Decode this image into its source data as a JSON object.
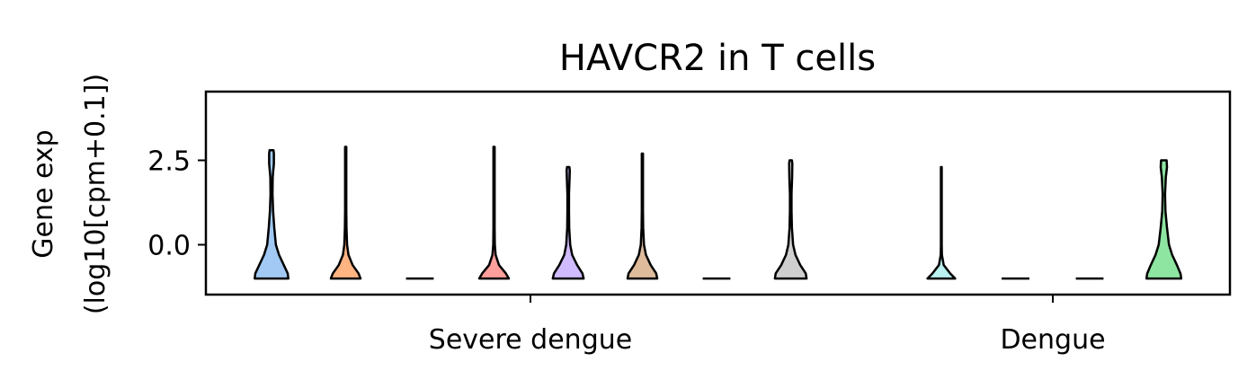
{
  "chart_data": {
    "type": "violin",
    "title": "HAVCR2 in T cells",
    "ylabel_lines": [
      "Gene exp",
      "(log10[cpm+0.1])"
    ],
    "xlabel": "",
    "ylim": [
      -1.5,
      4.4
    ],
    "yticks": [
      0.0,
      2.5
    ],
    "ytick_labels": [
      "0.0",
      "2.5"
    ],
    "groups": [
      {
        "label": "Severe dengue",
        "violins": [
          {
            "color": "#a1c9f4",
            "min": -1.0,
            "max": 2.8,
            "max_width": 0.85,
            "shape": [
              [
                -1.0,
                0.85
              ],
              [
                -0.85,
                0.82
              ],
              [
                -0.6,
                0.62
              ],
              [
                -0.3,
                0.38
              ],
              [
                0.0,
                0.22
              ],
              [
                0.5,
                0.14
              ],
              [
                1.0,
                0.08
              ],
              [
                1.5,
                0.05
              ],
              [
                2.0,
                0.06
              ],
              [
                2.4,
                0.12
              ],
              [
                2.7,
                0.12
              ],
              [
                2.8,
                0.1
              ]
            ]
          },
          {
            "color": "#ffb482",
            "min": -1.0,
            "max": 2.9,
            "max_width": 0.75,
            "shape": [
              [
                -1.0,
                0.75
              ],
              [
                -0.85,
                0.65
              ],
              [
                -0.6,
                0.35
              ],
              [
                -0.3,
                0.14
              ],
              [
                0.0,
                0.07
              ],
              [
                0.5,
                0.04
              ],
              [
                1.0,
                0.03
              ],
              [
                2.0,
                0.03
              ],
              [
                2.9,
                0.03
              ]
            ]
          },
          {
            "color": "#8de5a1",
            "min": -1.0,
            "max": -1.0,
            "max_width": 0.7,
            "shape": [
              [
                -1.0,
                0.7
              ]
            ]
          },
          {
            "color": "#ff9f9b",
            "min": -1.0,
            "max": 2.9,
            "max_width": 0.75,
            "shape": [
              [
                -1.0,
                0.75
              ],
              [
                -0.85,
                0.6
              ],
              [
                -0.6,
                0.25
              ],
              [
                -0.3,
                0.08
              ],
              [
                0.0,
                0.04
              ],
              [
                0.5,
                0.03
              ],
              [
                1.0,
                0.03
              ],
              [
                2.0,
                0.03
              ],
              [
                2.9,
                0.03
              ]
            ]
          },
          {
            "color": "#d0bbff",
            "min": -1.0,
            "max": 2.3,
            "max_width": 0.78,
            "shape": [
              [
                -1.0,
                0.78
              ],
              [
                -0.85,
                0.72
              ],
              [
                -0.6,
                0.45
              ],
              [
                -0.3,
                0.2
              ],
              [
                0.0,
                0.1
              ],
              [
                0.5,
                0.05
              ],
              [
                1.0,
                0.04
              ],
              [
                1.5,
                0.04
              ],
              [
                2.0,
                0.07
              ],
              [
                2.2,
                0.08
              ],
              [
                2.3,
                0.06
              ]
            ]
          },
          {
            "color": "#debb9b",
            "min": -1.0,
            "max": 2.7,
            "max_width": 0.75,
            "shape": [
              [
                -1.0,
                0.75
              ],
              [
                -0.85,
                0.7
              ],
              [
                -0.6,
                0.42
              ],
              [
                -0.3,
                0.18
              ],
              [
                0.0,
                0.08
              ],
              [
                0.5,
                0.04
              ],
              [
                1.0,
                0.03
              ],
              [
                2.0,
                0.03
              ],
              [
                2.7,
                0.03
              ]
            ]
          },
          {
            "color": "#fab0e4",
            "min": -1.0,
            "max": -1.0,
            "max_width": 0.7,
            "shape": [
              [
                -1.0,
                0.7
              ]
            ]
          },
          {
            "color": "#cfcfcf",
            "min": -1.0,
            "max": 2.5,
            "max_width": 0.8,
            "shape": [
              [
                -1.0,
                0.8
              ],
              [
                -0.85,
                0.76
              ],
              [
                -0.6,
                0.48
              ],
              [
                -0.3,
                0.24
              ],
              [
                0.0,
                0.12
              ],
              [
                0.5,
                0.06
              ],
              [
                1.0,
                0.04
              ],
              [
                1.5,
                0.04
              ],
              [
                2.0,
                0.07
              ],
              [
                2.4,
                0.08
              ],
              [
                2.5,
                0.06
              ]
            ]
          }
        ]
      },
      {
        "label": "Dengue",
        "violins": [
          {
            "color": "#b9f2f0",
            "min": -1.0,
            "max": 2.3,
            "max_width": 0.7,
            "shape": [
              [
                -1.0,
                0.7
              ],
              [
                -0.85,
                0.45
              ],
              [
                -0.6,
                0.12
              ],
              [
                -0.3,
                0.03
              ],
              [
                0.0,
                0.02
              ],
              [
                1.0,
                0.02
              ],
              [
                2.3,
                0.02
              ]
            ]
          },
          {
            "color": "#a1c9f4",
            "min": -1.0,
            "max": -1.0,
            "max_width": 0.7,
            "shape": [
              [
                -1.0,
                0.7
              ]
            ]
          },
          {
            "color": "#ffb482",
            "min": -1.0,
            "max": -1.0,
            "max_width": 0.7,
            "shape": [
              [
                -1.0,
                0.7
              ]
            ]
          },
          {
            "color": "#8de5a1",
            "min": -1.0,
            "max": 2.5,
            "max_width": 0.88,
            "shape": [
              [
                -1.0,
                0.88
              ],
              [
                -0.85,
                0.84
              ],
              [
                -0.6,
                0.66
              ],
              [
                -0.3,
                0.42
              ],
              [
                0.0,
                0.26
              ],
              [
                0.5,
                0.16
              ],
              [
                1.0,
                0.08
              ],
              [
                1.5,
                0.06
              ],
              [
                2.0,
                0.1
              ],
              [
                2.3,
                0.16
              ],
              [
                2.5,
                0.14
              ]
            ]
          }
        ]
      }
    ],
    "grid": false,
    "legend": "none"
  }
}
